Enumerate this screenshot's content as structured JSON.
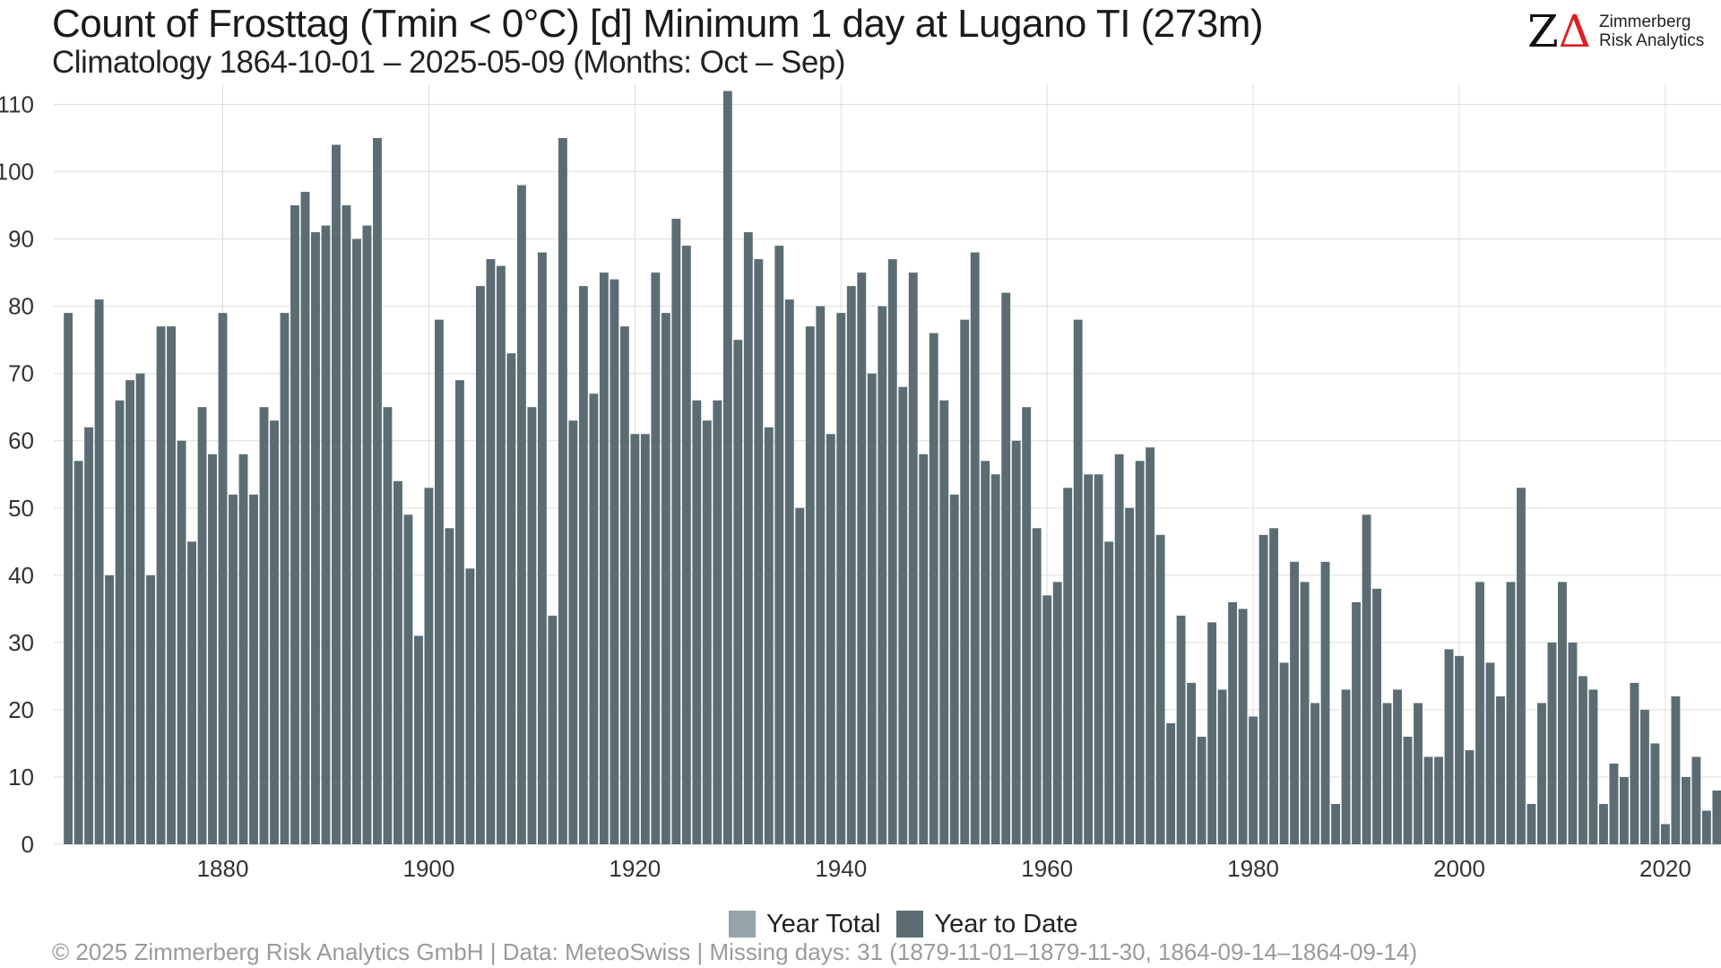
{
  "title": "Count of Frosttag (Tmin < 0°C) [d] Minimum 1 day at Lugano  TI (273m)",
  "subtitle": "Climatology 1864-10-01 – 2025-05-09 (Months: Oct – Sep)",
  "logo": {
    "mark_z": "Z",
    "mark_delta": "Δ",
    "line1": "Zimmerberg",
    "line2": "Risk Analytics"
  },
  "legend": [
    {
      "label": "Year Total",
      "color": "#95a5aa"
    },
    {
      "label": "Year to Date",
      "color": "#5b6d73"
    }
  ],
  "footer": "©  2025 Zimmerberg Risk Analytics GmbH | Data: MeteoSwiss | Missing days: 31 (1879-11-01–1879-11-30, 1864-09-14–1864-09-14)",
  "colors": {
    "bar": "#5b6d73",
    "grid": "#dedede",
    "axis_text": "#333333"
  },
  "chart_data": {
    "type": "bar",
    "title": "Count of Frosttag (Tmin < 0°C) [d] Minimum 1 day at Lugano  TI (273m)",
    "xlabel": "",
    "ylabel": "",
    "grid": true,
    "legend_position": "bottom",
    "xlim": [
      1863.6,
      2025.4
    ],
    "ylim": [
      0,
      113
    ],
    "x_ticks": [
      1880,
      1900,
      1920,
      1940,
      1960,
      1980,
      2000,
      2020
    ],
    "y_ticks": [
      0,
      10,
      20,
      30,
      40,
      50,
      60,
      70,
      80,
      90,
      100,
      110
    ],
    "x_start": 1865,
    "series": [
      {
        "name": "Year to Date",
        "values": [
          79,
          57,
          62,
          81,
          40,
          66,
          69,
          70,
          40,
          77,
          77,
          60,
          45,
          65,
          58,
          79,
          52,
          58,
          52,
          65,
          63,
          79,
          95,
          97,
          91,
          92,
          104,
          95,
          90,
          92,
          105,
          65,
          54,
          49,
          31,
          53,
          78,
          47,
          69,
          41,
          83,
          87,
          86,
          73,
          98,
          65,
          88,
          34,
          105,
          63,
          83,
          67,
          85,
          84,
          77,
          61,
          61,
          85,
          79,
          93,
          89,
          66,
          63,
          66,
          112,
          75,
          91,
          87,
          62,
          89,
          81,
          50,
          77,
          80,
          61,
          79,
          83,
          85,
          70,
          80,
          87,
          68,
          85,
          58,
          76,
          66,
          52,
          78,
          88,
          57,
          55,
          82,
          60,
          65,
          47,
          37,
          39,
          53,
          78,
          55,
          55,
          45,
          58,
          50,
          57,
          59,
          46,
          18,
          34,
          24,
          16,
          33,
          23,
          36,
          35,
          19,
          46,
          47,
          27,
          42,
          39,
          21,
          42,
          6,
          23,
          36,
          49,
          38,
          21,
          23,
          16,
          21,
          13,
          13,
          29,
          28,
          14,
          39,
          27,
          22,
          39,
          53,
          6,
          21,
          30,
          39,
          30,
          25,
          23,
          6,
          12,
          10,
          24,
          20,
          15,
          3,
          22,
          10,
          13,
          5,
          8
        ]
      }
    ]
  }
}
